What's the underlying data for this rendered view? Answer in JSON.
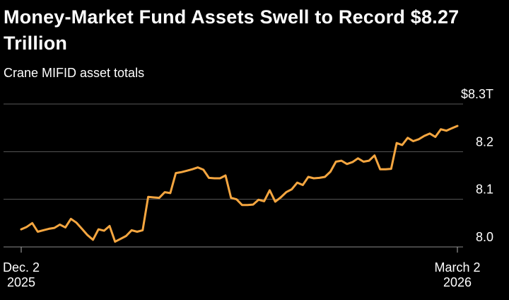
{
  "chart_data": {
    "type": "line",
    "title": "Money-Market Fund Assets Swell to Record $8.27 Trillion",
    "subtitle": "Crane MIFID asset totals",
    "xlabel": "",
    "ylabel": "",
    "y_unit": "trillion USD",
    "ylim": [
      8.0,
      8.3
    ],
    "yticks": [
      8.0,
      8.1,
      8.2,
      8.3
    ],
    "ytick_labels": [
      "8.0",
      "8.1",
      "8.2",
      "$8.3T"
    ],
    "xtick_labels": [
      {
        "line1": "Dec. 2",
        "line2": "2025"
      },
      {
        "line1": "March 2",
        "line2": "2026"
      }
    ],
    "grid": true,
    "line_color": "#f5a640",
    "series": [
      {
        "values": [
          8.037,
          8.042,
          8.05,
          8.032,
          8.035,
          8.038,
          8.04,
          8.047,
          8.041,
          8.059,
          8.051,
          8.038,
          8.025,
          8.015,
          8.037,
          8.034,
          8.044,
          8.011,
          8.017,
          8.023,
          8.035,
          8.032,
          8.035,
          8.105,
          8.104,
          8.103,
          8.115,
          8.113,
          8.155,
          8.157,
          8.16,
          8.163,
          8.167,
          8.162,
          8.145,
          8.144,
          8.144,
          8.15,
          8.103,
          8.1,
          8.088,
          8.088,
          8.089,
          8.099,
          8.096,
          8.119,
          8.095,
          8.104,
          8.115,
          8.121,
          8.135,
          8.13,
          8.147,
          8.144,
          8.145,
          8.147,
          8.158,
          8.179,
          8.181,
          8.174,
          8.178,
          8.186,
          8.179,
          8.181,
          8.192,
          8.163,
          8.163,
          8.164,
          8.218,
          8.214,
          8.229,
          8.222,
          8.226,
          8.233,
          8.238,
          8.231,
          8.247,
          8.244,
          8.249,
          8.254
        ]
      }
    ]
  }
}
